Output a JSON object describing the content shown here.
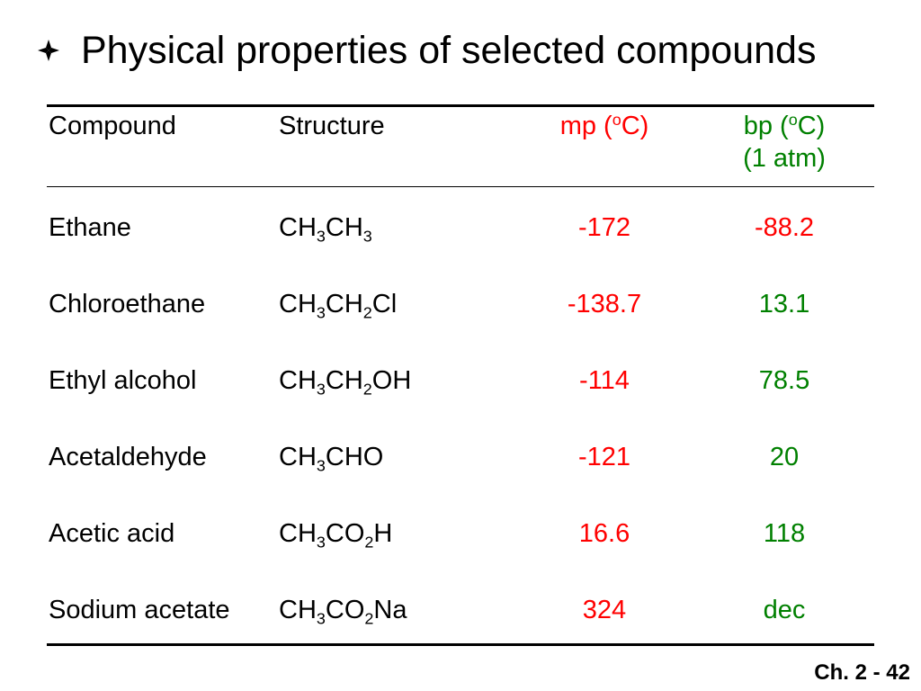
{
  "slide": {
    "title": "Physical properties of selected compounds",
    "bullet_icon": "diamond-bullet-icon",
    "footer": "Ch. 2 - 42"
  },
  "table": {
    "headers": {
      "compound": "Compound",
      "structure": "Structure",
      "mp_prefix": "mp (",
      "mp_sup": "o",
      "mp_suffix": "C)",
      "bp_prefix": "bp (",
      "bp_sup": "o",
      "bp_suffix": "C)",
      "bp_line2": "(1 atm)"
    },
    "rows": [
      {
        "compound": "Ethane",
        "structure": [
          {
            "t": "CH",
            "s": "3"
          },
          {
            "t": "CH",
            "s": "3"
          }
        ],
        "mp": "-172",
        "bp": "-88.2",
        "bp_color": "#ff0000"
      },
      {
        "compound": "Chloroethane",
        "structure": [
          {
            "t": "CH",
            "s": "3"
          },
          {
            "t": "CH",
            "s": "2"
          },
          {
            "t": "Cl"
          }
        ],
        "mp": "-138.7",
        "bp": "13.1",
        "bp_color": "#008000"
      },
      {
        "compound": "Ethyl alcohol",
        "structure": [
          {
            "t": "CH",
            "s": "3"
          },
          {
            "t": "CH",
            "s": "2"
          },
          {
            "t": "OH"
          }
        ],
        "mp": "-114",
        "bp": "78.5",
        "bp_color": "#008000"
      },
      {
        "compound": "Acetaldehyde",
        "structure": [
          {
            "t": "CH",
            "s": "3"
          },
          {
            "t": "CHO"
          }
        ],
        "mp": "-121",
        "bp": "20",
        "bp_color": "#008000"
      },
      {
        "compound": "Acetic acid",
        "structure": [
          {
            "t": "CH",
            "s": "3"
          },
          {
            "t": "CO",
            "s": "2"
          },
          {
            "t": "H"
          }
        ],
        "mp": "16.6",
        "bp": "118",
        "bp_color": "#008000"
      },
      {
        "compound": "Sodium acetate",
        "structure": [
          {
            "t": "CH",
            "s": "3"
          },
          {
            "t": "CO",
            "s": "2"
          },
          {
            "t": "Na"
          }
        ],
        "mp": "324",
        "bp": "dec",
        "bp_color": "#008000"
      }
    ]
  },
  "colors": {
    "mp": "#ff0000",
    "bp_header": "#008000",
    "text": "#000000",
    "bullet": "#000000"
  }
}
